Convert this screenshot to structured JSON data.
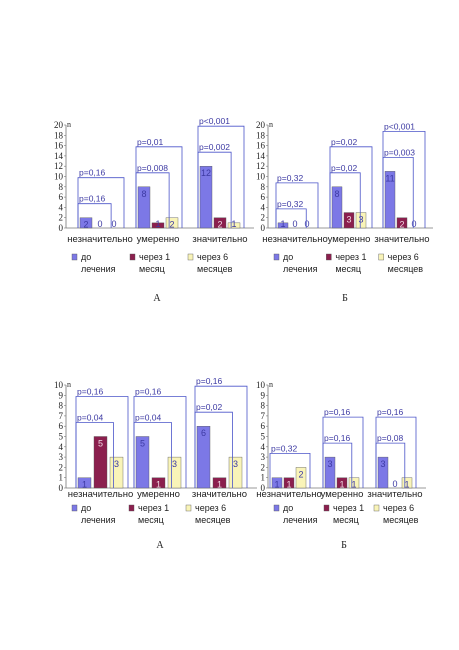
{
  "categories": [
    "незначительно",
    "умеренно",
    "значительно"
  ],
  "series_labels": [
    "до лечения",
    "через 1 месяц",
    "через 6 месяцев"
  ],
  "colors": {
    "bar_fill": [
      "#7c78e6",
      "#8b1f4e",
      "#f9f4b8"
    ],
    "value_text": "#3d3aa3",
    "bracket": "#4b55c9",
    "axis": "#777777",
    "text": "#222222"
  },
  "chart_data": [
    {
      "type": "bar",
      "panel": "А",
      "y_unit": "n",
      "ylim": [
        0,
        20
      ],
      "yticks": [
        "0",
        "2",
        "4",
        "6",
        "8",
        "10",
        "12",
        "14",
        "16",
        "18",
        "20"
      ],
      "categories": [
        "незначительно",
        "умеренно",
        "значительно"
      ],
      "series": [
        {
          "name": "до лечения",
          "values": [
            2,
            8,
            12
          ]
        },
        {
          "name": "через 1 месяц",
          "values": [
            0,
            1,
            2
          ]
        },
        {
          "name": "через 6 месяцев",
          "values": [
            0,
            2,
            1
          ]
        }
      ],
      "p_values": [
        {
          "outer": "p=0,16",
          "inner": "p=0,16"
        },
        {
          "outer": "p=0,01",
          "inner": "p=0,008"
        },
        {
          "outer": "p<0,001",
          "inner": "p=0,002"
        }
      ],
      "legend_position": "bottom"
    },
    {
      "type": "bar",
      "panel": "Б",
      "y_unit": "n",
      "ylim": [
        0,
        20
      ],
      "yticks": [
        "0",
        "2",
        "4",
        "6",
        "8",
        "10",
        "12",
        "14",
        "16",
        "18",
        "20"
      ],
      "categories": [
        "незначительно",
        "умеренно",
        "значительно"
      ],
      "series": [
        {
          "name": "до лечения",
          "values": [
            1,
            8,
            11
          ]
        },
        {
          "name": "через 1 месяц",
          "values": [
            0,
            3,
            2
          ]
        },
        {
          "name": "через 6 месяцев",
          "values": [
            0,
            3,
            0
          ]
        }
      ],
      "p_values": [
        {
          "outer": "p=0,32",
          "inner": "p=0,32"
        },
        {
          "outer": "p=0,02",
          "inner": "p=0,02"
        },
        {
          "outer": "p<0,001",
          "inner": "p=0,003"
        }
      ],
      "legend_position": "bottom"
    },
    {
      "type": "bar",
      "panel": "А",
      "y_unit": "n",
      "ylim": [
        0,
        10
      ],
      "yticks": [
        "0",
        "1",
        "2",
        "3",
        "4",
        "5",
        "6",
        "7",
        "8",
        "9",
        "10"
      ],
      "categories": [
        "незначительно",
        "умеренно",
        "значительно"
      ],
      "series": [
        {
          "name": "до лечения",
          "values": [
            1,
            5,
            6
          ]
        },
        {
          "name": "через 1 месяц",
          "values": [
            5,
            1,
            1
          ]
        },
        {
          "name": "через 6 месяцев",
          "values": [
            3,
            3,
            3
          ]
        }
      ],
      "p_values": [
        {
          "outer": "p=0,16",
          "inner": "p=0,04"
        },
        {
          "outer": "p=0,16",
          "inner": "p=0,04"
        },
        {
          "outer": "p=0,16",
          "inner": "p=0,02"
        }
      ],
      "legend_position": "bottom"
    },
    {
      "type": "bar",
      "panel": "Б",
      "y_unit": "n",
      "ylim": [
        0,
        10
      ],
      "yticks": [
        "0",
        "1",
        "2",
        "3",
        "4",
        "5",
        "6",
        "7",
        "8",
        "9",
        "10"
      ],
      "categories": [
        "незначительно",
        "умеренно",
        "значительно"
      ],
      "series": [
        {
          "name": "до лечения",
          "values": [
            1,
            3,
            3
          ]
        },
        {
          "name": "через 1 месяц",
          "values": [
            1,
            1,
            0
          ]
        },
        {
          "name": "через 6 месяцев",
          "values": [
            2,
            1,
            1
          ]
        }
      ],
      "p_values": [
        {
          "outer": "p=0,32",
          "inner": null
        },
        {
          "outer": "p=0,16",
          "inner": "p=0,16"
        },
        {
          "outer": "p=0,16",
          "inner": "p=0,08"
        }
      ],
      "legend_position": "bottom"
    }
  ]
}
